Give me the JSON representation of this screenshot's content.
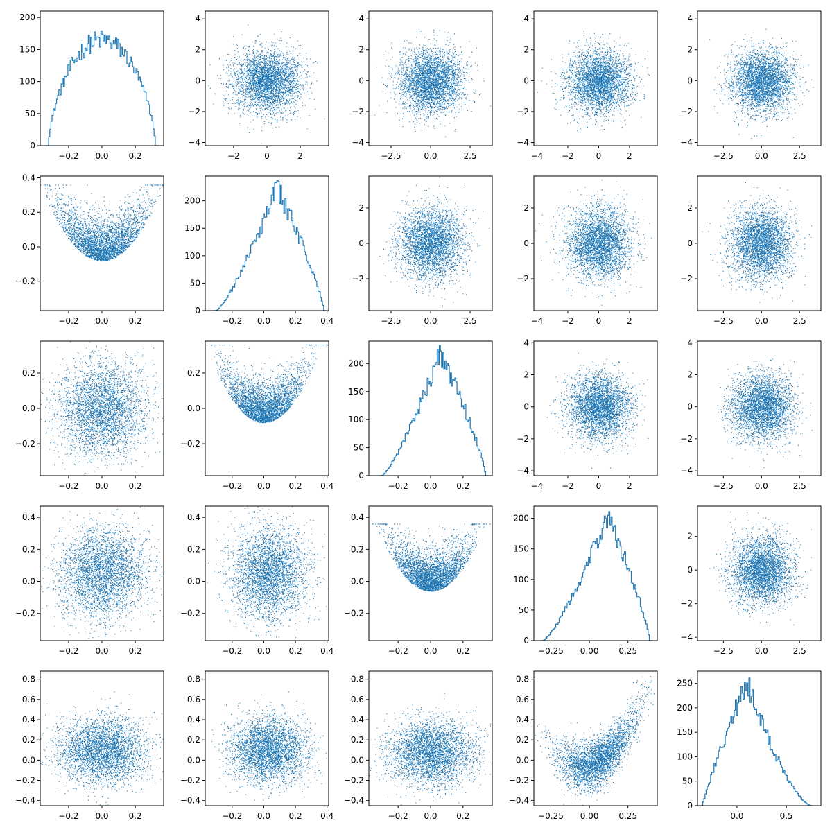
{
  "figure": {
    "rows": 5,
    "cols": 5
  },
  "colors": {
    "series": "#1f77b4"
  },
  "chart_data": [
    {
      "type": "histogram",
      "row": 0,
      "col": 0,
      "xlim": [
        -0.37,
        0.37
      ],
      "ylim": [
        0,
        210
      ],
      "xticks": [
        -0.2,
        0.0,
        0.2
      ],
      "xtick_labels": [
        "−0.2",
        "0.0",
        "0.2"
      ],
      "yticks": [
        0,
        50,
        100,
        150,
        200
      ],
      "ytick_labels": [
        "0",
        "50",
        "100",
        "150",
        "200"
      ],
      "dist": {
        "kind": "flat",
        "support": [
          -0.32,
          0.32
        ],
        "peak": 165
      }
    },
    {
      "type": "scatter",
      "row": 0,
      "col": 1,
      "xlim": [
        -3.7,
        3.7
      ],
      "ylim": [
        -4.2,
        4.5
      ],
      "xticks": [
        -2,
        0,
        2
      ],
      "xtick_labels": [
        "−2",
        "0",
        "2"
      ],
      "yticks": [
        -4,
        -2,
        0,
        2,
        4
      ],
      "ytick_labels": [
        "−4",
        "−2",
        "0",
        "2",
        "4"
      ],
      "dist": {
        "kind": "normal",
        "cx": 0,
        "cy": 0,
        "sx": 1,
        "sy": 1
      }
    },
    {
      "type": "scatter",
      "row": 0,
      "col": 2,
      "xlim": [
        -3.9,
        3.9
      ],
      "ylim": [
        -4.2,
        4.5
      ],
      "xticks": [
        -2.5,
        0.0,
        2.5
      ],
      "xtick_labels": [
        "−2.5",
        "0.0",
        "2.5"
      ],
      "yticks": [
        -4,
        -2,
        0,
        2,
        4
      ],
      "ytick_labels": [
        "−4",
        "−2",
        "0",
        "2",
        "4"
      ],
      "dist": {
        "kind": "normal",
        "cx": 0,
        "cy": 0,
        "sx": 1,
        "sy": 1
      }
    },
    {
      "type": "scatter",
      "row": 0,
      "col": 3,
      "xlim": [
        -4.2,
        3.8
      ],
      "ylim": [
        -4.2,
        4.5
      ],
      "xticks": [
        -4,
        -2,
        0,
        2
      ],
      "xtick_labels": [
        "−4",
        "−2",
        "0",
        "2"
      ],
      "yticks": [
        -4,
        -2,
        0,
        2,
        4
      ],
      "ytick_labels": [
        "−4",
        "−2",
        "0",
        "2",
        "4"
      ],
      "dist": {
        "kind": "normal",
        "cx": 0,
        "cy": 0,
        "sx": 1,
        "sy": 1
      }
    },
    {
      "type": "scatter",
      "row": 0,
      "col": 4,
      "xlim": [
        -4.2,
        3.9
      ],
      "ylim": [
        -4.2,
        4.5
      ],
      "xticks": [
        -2.5,
        0.0,
        2.5
      ],
      "xtick_labels": [
        "−2.5",
        "0.0",
        "2.5"
      ],
      "yticks": [
        -4,
        -2,
        0,
        2,
        4
      ],
      "ytick_labels": [
        "−4",
        "−2",
        "0",
        "2",
        "4"
      ],
      "dist": {
        "kind": "normal",
        "cx": 0,
        "cy": 0,
        "sx": 1,
        "sy": 1
      }
    },
    {
      "type": "scatter",
      "row": 1,
      "col": 0,
      "xlim": [
        -0.37,
        0.37
      ],
      "ylim": [
        -0.37,
        0.41
      ],
      "xticks": [
        -0.2,
        0.0,
        0.2
      ],
      "xtick_labels": [
        "−0.2",
        "0.0",
        "0.2"
      ],
      "yticks": [
        -0.2,
        0.0,
        0.2,
        0.4
      ],
      "ytick_labels": [
        "−0.2",
        "0.0",
        "0.2",
        "0.4"
      ],
      "dist": {
        "kind": "vshape",
        "xs": 0.13,
        "y0": -0.1,
        "k": 3.5,
        "sy": 0.11
      }
    },
    {
      "type": "histogram",
      "row": 1,
      "col": 1,
      "xlim": [
        -0.37,
        0.41
      ],
      "ylim": [
        0,
        245
      ],
      "xticks": [
        -0.2,
        0.0,
        0.2,
        0.4
      ],
      "xtick_labels": [
        "−0.2",
        "0.0",
        "0.2",
        "0.4"
      ],
      "yticks": [
        0,
        50,
        100,
        150,
        200
      ],
      "ytick_labels": [
        "0",
        "50",
        "100",
        "150",
        "200"
      ],
      "dist": {
        "kind": "skew",
        "support": [
          -0.3,
          0.38
        ],
        "mode": 0.08,
        "peak": 225
      }
    },
    {
      "type": "scatter",
      "row": 1,
      "col": 2,
      "xlim": [
        -3.9,
        3.9
      ],
      "ylim": [
        -3.8,
        3.8
      ],
      "xticks": [
        -2.5,
        0.0,
        2.5
      ],
      "xtick_labels": [
        "−2.5",
        "0.0",
        "2.5"
      ],
      "yticks": [
        -2,
        0,
        2
      ],
      "ytick_labels": [
        "−2",
        "0",
        "2"
      ],
      "dist": {
        "kind": "normal",
        "cx": 0,
        "cy": 0,
        "sx": 1,
        "sy": 1
      }
    },
    {
      "type": "scatter",
      "row": 1,
      "col": 3,
      "xlim": [
        -4.2,
        3.8
      ],
      "ylim": [
        -3.8,
        3.8
      ],
      "xticks": [
        -4,
        -2,
        0,
        2
      ],
      "xtick_labels": [
        "−4",
        "−2",
        "0",
        "2"
      ],
      "yticks": [
        -2,
        0,
        2
      ],
      "ytick_labels": [
        "−2",
        "0",
        "2"
      ],
      "dist": {
        "kind": "normal",
        "cx": 0,
        "cy": 0,
        "sx": 1,
        "sy": 1
      }
    },
    {
      "type": "scatter",
      "row": 1,
      "col": 4,
      "xlim": [
        -4.2,
        3.9
      ],
      "ylim": [
        -3.8,
        3.8
      ],
      "xticks": [
        -2.5,
        0.0,
        2.5
      ],
      "xtick_labels": [
        "−2.5",
        "0.0",
        "2.5"
      ],
      "yticks": [
        -2,
        0,
        2
      ],
      "ytick_labels": [
        "−2",
        "0",
        "2"
      ],
      "dist": {
        "kind": "normal",
        "cx": 0,
        "cy": 0,
        "sx": 1,
        "sy": 1
      }
    },
    {
      "type": "scatter",
      "row": 2,
      "col": 0,
      "xlim": [
        -0.37,
        0.37
      ],
      "ylim": [
        -0.38,
        0.38
      ],
      "xticks": [
        -0.2,
        0.0,
        0.2
      ],
      "xtick_labels": [
        "−0.2",
        "0.0",
        "0.2"
      ],
      "yticks": [
        -0.2,
        0.0,
        0.2
      ],
      "ytick_labels": [
        "−0.2",
        "0.0",
        "0.2"
      ],
      "dist": {
        "kind": "box",
        "xs": 0.13,
        "ys": 0.13
      }
    },
    {
      "type": "scatter",
      "row": 2,
      "col": 1,
      "xlim": [
        -0.37,
        0.41
      ],
      "ylim": [
        -0.38,
        0.38
      ],
      "xticks": [
        -0.2,
        0.0,
        0.2,
        0.4
      ],
      "xtick_labels": [
        "−0.2",
        "0.0",
        "0.2",
        "0.4"
      ],
      "yticks": [
        -0.2,
        0.0,
        0.2
      ],
      "ytick_labels": [
        "−0.2",
        "0.0",
        "0.2"
      ],
      "dist": {
        "kind": "vshape",
        "xs": 0.12,
        "y0": -0.1,
        "k": 3.6,
        "sy": 0.1
      }
    },
    {
      "type": "histogram",
      "row": 2,
      "col": 2,
      "xlim": [
        -0.38,
        0.38
      ],
      "ylim": [
        0,
        240
      ],
      "xticks": [
        -0.2,
        0.0,
        0.2
      ],
      "xtick_labels": [
        "−0.2",
        "0.0",
        "0.2"
      ],
      "yticks": [
        0,
        50,
        100,
        150,
        200
      ],
      "ytick_labels": [
        "0",
        "50",
        "100",
        "150",
        "200"
      ],
      "dist": {
        "kind": "skew",
        "support": [
          -0.3,
          0.34
        ],
        "mode": 0.06,
        "peak": 220
      }
    },
    {
      "type": "scatter",
      "row": 2,
      "col": 3,
      "xlim": [
        -4.2,
        3.8
      ],
      "ylim": [
        -4.3,
        4.1
      ],
      "xticks": [
        -4,
        -2,
        0,
        2
      ],
      "xtick_labels": [
        "−4",
        "−2",
        "0",
        "2"
      ],
      "yticks": [
        -4,
        -2,
        0,
        2,
        4
      ],
      "ytick_labels": [
        "−4",
        "−2",
        "0",
        "2",
        "4"
      ],
      "dist": {
        "kind": "normal",
        "cx": 0,
        "cy": 0,
        "sx": 1,
        "sy": 1
      }
    },
    {
      "type": "scatter",
      "row": 2,
      "col": 4,
      "xlim": [
        -4.2,
        3.9
      ],
      "ylim": [
        -4.3,
        4.1
      ],
      "xticks": [
        -2.5,
        0.0,
        2.5
      ],
      "xtick_labels": [
        "−2.5",
        "0.0",
        "2.5"
      ],
      "yticks": [
        -4,
        -2,
        0,
        2,
        4
      ],
      "ytick_labels": [
        "−4",
        "−2",
        "0",
        "2",
        "4"
      ],
      "dist": {
        "kind": "normal",
        "cx": 0,
        "cy": 0,
        "sx": 1,
        "sy": 1
      }
    },
    {
      "type": "scatter",
      "row": 3,
      "col": 0,
      "xlim": [
        -0.37,
        0.37
      ],
      "ylim": [
        -0.37,
        0.47
      ],
      "xticks": [
        -0.2,
        0.0,
        0.2
      ],
      "xtick_labels": [
        "−0.2",
        "0.0",
        "0.2"
      ],
      "yticks": [
        -0.2,
        0.0,
        0.2,
        0.4
      ],
      "ytick_labels": [
        "−0.2",
        "0.0",
        "0.2",
        "0.4"
      ],
      "dist": {
        "kind": "box",
        "xs": 0.13,
        "ys": 0.14,
        "cy": 0.05
      }
    },
    {
      "type": "scatter",
      "row": 3,
      "col": 1,
      "xlim": [
        -0.37,
        0.41
      ],
      "ylim": [
        -0.37,
        0.47
      ],
      "xticks": [
        -0.2,
        0.0,
        0.2,
        0.4
      ],
      "xtick_labels": [
        "−0.2",
        "0.0",
        "0.2",
        "0.4"
      ],
      "yticks": [
        -0.2,
        0.0,
        0.2,
        0.4
      ],
      "ytick_labels": [
        "−0.2",
        "0.0",
        "0.2",
        "0.4"
      ],
      "dist": {
        "kind": "box",
        "xs": 0.12,
        "ys": 0.14,
        "cx": 0.03,
        "cy": 0.05
      }
    },
    {
      "type": "scatter",
      "row": 3,
      "col": 2,
      "xlim": [
        -0.38,
        0.38
      ],
      "ylim": [
        -0.37,
        0.47
      ],
      "xticks": [
        -0.2,
        0.0,
        0.2
      ],
      "xtick_labels": [
        "−0.2",
        "0.0",
        "0.2"
      ],
      "yticks": [
        -0.2,
        0.0,
        0.2,
        0.4
      ],
      "ytick_labels": [
        "−0.2",
        "0.0",
        "0.2",
        "0.4"
      ],
      "dist": {
        "kind": "vshape",
        "xs": 0.12,
        "y0": -0.08,
        "k": 4.0,
        "sy": 0.11
      }
    },
    {
      "type": "histogram",
      "row": 3,
      "col": 3,
      "xlim": [
        -0.36,
        0.44
      ],
      "ylim": [
        0,
        220
      ],
      "xticks": [
        -0.25,
        0.0,
        0.25
      ],
      "xtick_labels": [
        "−0.25",
        "0.00",
        "0.25"
      ],
      "yticks": [
        0,
        50,
        100,
        150,
        200
      ],
      "ytick_labels": [
        "0",
        "50",
        "100",
        "150",
        "200"
      ],
      "dist": {
        "kind": "skew",
        "support": [
          -0.3,
          0.39
        ],
        "mode": 0.12,
        "peak": 205
      }
    },
    {
      "type": "scatter",
      "row": 3,
      "col": 4,
      "xlim": [
        -4.2,
        3.9
      ],
      "ylim": [
        -4.2,
        3.8
      ],
      "xticks": [
        -2.5,
        0.0,
        2.5
      ],
      "xtick_labels": [
        "−2.5",
        "0.0",
        "2.5"
      ],
      "yticks": [
        -4,
        -2,
        0,
        2
      ],
      "ytick_labels": [
        "−4",
        "−2",
        "0",
        "2"
      ],
      "dist": {
        "kind": "normal",
        "cx": 0,
        "cy": 0,
        "sx": 1,
        "sy": 1
      }
    },
    {
      "type": "scatter",
      "row": 4,
      "col": 0,
      "xlim": [
        -0.37,
        0.37
      ],
      "ylim": [
        -0.45,
        0.88
      ],
      "xticks": [
        -0.2,
        0.0,
        0.2
      ],
      "xtick_labels": [
        "−0.2",
        "0.0",
        "0.2"
      ],
      "yticks": [
        -0.4,
        -0.2,
        0.0,
        0.2,
        0.4,
        0.6,
        0.8
      ],
      "ytick_labels": [
        "−0.4",
        "−0.2",
        "0.0",
        "0.2",
        "0.4",
        "0.6",
        "0.8"
      ],
      "dist": {
        "kind": "box",
        "xs": 0.13,
        "ys": 0.16,
        "cy": 0.1
      }
    },
    {
      "type": "scatter",
      "row": 4,
      "col": 1,
      "xlim": [
        -0.37,
        0.41
      ],
      "ylim": [
        -0.45,
        0.88
      ],
      "xticks": [
        -0.2,
        0.0,
        0.2,
        0.4
      ],
      "xtick_labels": [
        "−0.2",
        "0.0",
        "0.2",
        "0.4"
      ],
      "yticks": [
        -0.4,
        -0.2,
        0.0,
        0.2,
        0.4,
        0.6,
        0.8
      ],
      "ytick_labels": [
        "−0.4",
        "−0.2",
        "0.0",
        "0.2",
        "0.4",
        "0.6",
        "0.8"
      ],
      "dist": {
        "kind": "box",
        "xs": 0.12,
        "ys": 0.16,
        "cx": 0.03,
        "cy": 0.1
      }
    },
    {
      "type": "scatter",
      "row": 4,
      "col": 2,
      "xlim": [
        -0.38,
        0.38
      ],
      "ylim": [
        -0.45,
        0.88
      ],
      "xticks": [
        -0.2,
        0.0,
        0.2
      ],
      "xtick_labels": [
        "−0.2",
        "0.0",
        "0.2"
      ],
      "yticks": [
        -0.4,
        -0.2,
        0.0,
        0.2,
        0.4,
        0.6,
        0.8
      ],
      "ytick_labels": [
        "−0.4",
        "−0.2",
        "0.0",
        "0.2",
        "0.4",
        "0.6",
        "0.8"
      ],
      "dist": {
        "kind": "box",
        "xs": 0.13,
        "ys": 0.16,
        "cy": 0.08
      }
    },
    {
      "type": "scatter",
      "row": 4,
      "col": 3,
      "xlim": [
        -0.36,
        0.44
      ],
      "ylim": [
        -0.45,
        0.88
      ],
      "xticks": [
        -0.25,
        0.0,
        0.25
      ],
      "xtick_labels": [
        "−0.25",
        "0.00",
        "0.25"
      ],
      "yticks": [
        -0.4,
        -0.2,
        0.0,
        0.2,
        0.4,
        0.6,
        0.8
      ],
      "ytick_labels": [
        "−0.4",
        "−0.2",
        "0.0",
        "0.2",
        "0.4",
        "0.6",
        "0.8"
      ],
      "dist": {
        "kind": "parabola",
        "cx": 0.05,
        "xs": 0.13,
        "y0": -0.02,
        "k": 4.0,
        "sy": 0.12
      }
    },
    {
      "type": "histogram",
      "row": 4,
      "col": 4,
      "xlim": [
        -0.4,
        0.85
      ],
      "ylim": [
        0,
        275
      ],
      "xticks": [
        0.0,
        0.5
      ],
      "xtick_labels": [
        "0.0",
        "0.5"
      ],
      "yticks": [
        0,
        50,
        100,
        150,
        200,
        250
      ],
      "ytick_labels": [
        "0",
        "50",
        "100",
        "150",
        "200",
        "250"
      ],
      "dist": {
        "kind": "skewr",
        "support": [
          -0.35,
          0.75
        ],
        "mode": 0.1,
        "peak": 255
      }
    }
  ]
}
